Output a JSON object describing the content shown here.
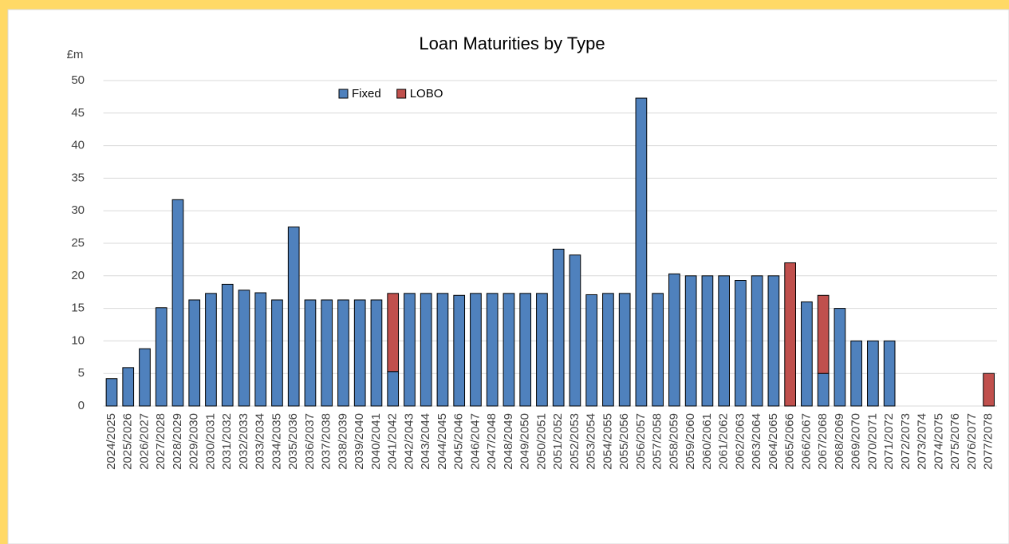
{
  "chart_data": {
    "type": "stacked-bar",
    "title": "Loan Maturities by Type",
    "y_label": "£m",
    "categories": [
      "2024/2025",
      "2025/2026",
      "2026/2027",
      "2027/2028",
      "2028/2029",
      "2029/2030",
      "2030/2031",
      "2031/2032",
      "2032/2033",
      "2033/2034",
      "2034/2035",
      "2035/2036",
      "2036/2037",
      "2037/2038",
      "2038/2039",
      "2039/2040",
      "2040/2041",
      "2041/2042",
      "2042/2043",
      "2043/2044",
      "2044/2045",
      "2045/2046",
      "2046/2047",
      "2047/2048",
      "2048/2049",
      "2049/2050",
      "2050/2051",
      "2051/2052",
      "2052/2053",
      "2053/2054",
      "2054/2055",
      "2055/2056",
      "2056/2057",
      "2057/2058",
      "2058/2059",
      "2059/2060",
      "2060/2061",
      "2061/2062",
      "2062/2063",
      "2063/2064",
      "2064/2065",
      "2065/2066",
      "2066/2067",
      "2067/2068",
      "2068/2069",
      "2069/2070",
      "2070/2071",
      "2071/2072",
      "2072/2073",
      "2073/2074",
      "2074/2075",
      "2075/2076",
      "2076/2077",
      "2077/2078"
    ],
    "series": [
      {
        "name": "Fixed",
        "color": "#4f81bd",
        "values": [
          4.2,
          5.9,
          8.8,
          15.1,
          31.7,
          16.3,
          17.3,
          18.7,
          17.8,
          17.4,
          16.3,
          27.5,
          16.3,
          16.3,
          16.3,
          16.3,
          16.3,
          5.3,
          17.3,
          17.3,
          17.3,
          17.0,
          17.3,
          17.3,
          17.3,
          17.3,
          17.3,
          24.1,
          23.2,
          17.1,
          17.3,
          17.3,
          47.3,
          17.3,
          20.3,
          20,
          20,
          20,
          19.3,
          20,
          20,
          0,
          16,
          5,
          15,
          10,
          10,
          10,
          0,
          0,
          0,
          0,
          0,
          0
        ]
      },
      {
        "name": "LOBO",
        "color": "#c0504d",
        "values": [
          0,
          0,
          0,
          0,
          0,
          0,
          0,
          0,
          0,
          0,
          0,
          0,
          0,
          0,
          0,
          0,
          0,
          12,
          0,
          0,
          0,
          0,
          0,
          0,
          0,
          0,
          0,
          0,
          0,
          0,
          0,
          0,
          0,
          0,
          0,
          0,
          0,
          0,
          0,
          0,
          0,
          22,
          0,
          12,
          0,
          0,
          0,
          0,
          0,
          0,
          0,
          0,
          0,
          5
        ]
      }
    ],
    "ylim": [
      0,
      50
    ],
    "yticks": [
      0,
      5,
      10,
      15,
      20,
      25,
      30,
      35,
      40,
      45,
      50
    ],
    "grid": true
  }
}
